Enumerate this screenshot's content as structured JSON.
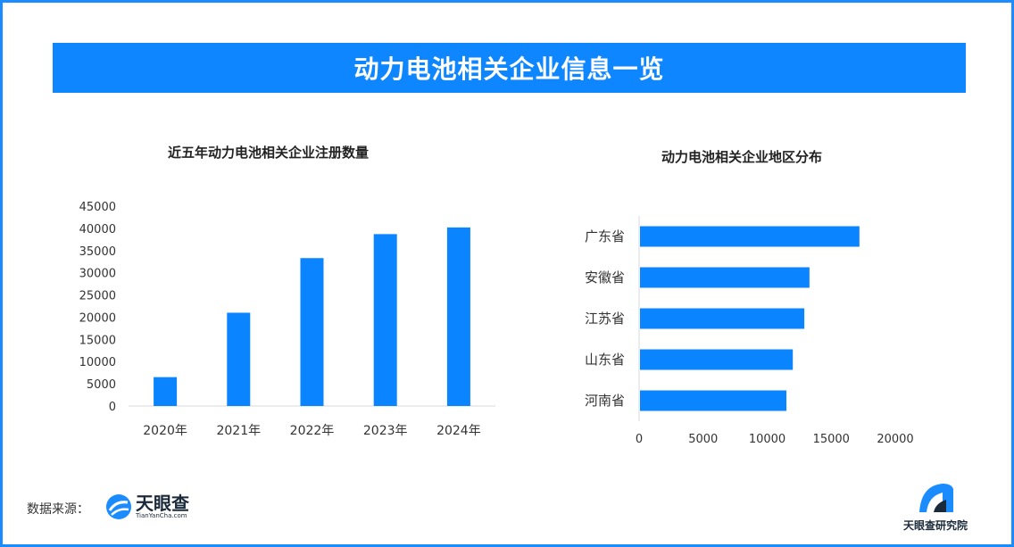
{
  "header": {
    "title": "动力电池相关企业信息一览"
  },
  "colors": {
    "accent": "#0d86ff",
    "bar": "#0a84ff",
    "border": "#1a8cff"
  },
  "chart_data": [
    {
      "type": "bar",
      "title": "近五年动力电池相关企业注册数量",
      "categories": [
        "2020年",
        "2021年",
        "2022年",
        "2023年",
        "2024年"
      ],
      "values": [
        6500,
        21000,
        33300,
        38700,
        40200
      ],
      "ylim": [
        0,
        45000
      ],
      "yticks": [
        "0",
        "5000",
        "10000",
        "15000",
        "20000",
        "25000",
        "30000",
        "35000",
        "40000",
        "45000"
      ],
      "grid": false
    },
    {
      "type": "bar",
      "orientation": "horizontal",
      "title": "动力电池相关企业地区分布",
      "categories": [
        "广东省",
        "安徽省",
        "江苏省",
        "山东省",
        "河南省"
      ],
      "values": [
        17200,
        13300,
        12900,
        12000,
        11500
      ],
      "xlim": [
        0,
        20000
      ],
      "xticks": [
        "0",
        "5000",
        "10000",
        "15000",
        "20000"
      ],
      "grid": false
    }
  ],
  "footer": {
    "source_label": "数据来源：",
    "source_logo_cn": "天眼查",
    "source_logo_en": "TianYanCha.com",
    "institute": "天眼查研究院"
  }
}
